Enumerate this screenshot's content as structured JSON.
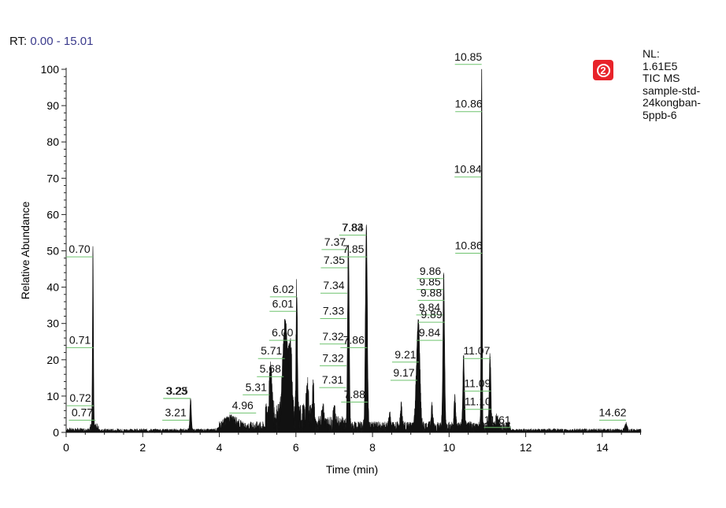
{
  "header": {
    "rt_prefix": "RT:",
    "rt_range": "0.00 - 15.01"
  },
  "badge": {
    "symbol": "2",
    "color": "#e8232a"
  },
  "info": {
    "lines": [
      "NL:",
      "1.61E5",
      "TIC  MS",
      "sample-std-",
      "24kongban-",
      "5ppb-6"
    ]
  },
  "chart_data": {
    "type": "line",
    "xlabel": "Time (min)",
    "ylabel": "Relative Abundance",
    "xlim": [
      0,
      15.01
    ],
    "ylim": [
      0,
      100
    ],
    "x_ticks": [
      "0",
      "2",
      "4",
      "6",
      "8",
      "10",
      "12",
      "14"
    ],
    "y_ticks": [
      "0",
      "10",
      "20",
      "30",
      "40",
      "50",
      "60",
      "70",
      "80",
      "90",
      "100"
    ],
    "peaks": [
      {
        "rt": 0.7,
        "abundance": 49
      },
      {
        "rt": 3.25,
        "abundance": 9
      },
      {
        "rt": 6.02,
        "abundance": 36
      },
      {
        "rt": 7.37,
        "abundance": 51
      },
      {
        "rt": 7.84,
        "abundance": 55
      },
      {
        "rt": 9.21,
        "abundance": 18
      },
      {
        "rt": 9.86,
        "abundance": 42
      },
      {
        "rt": 10.85,
        "abundance": 100
      },
      {
        "rt": 11.07,
        "abundance": 20
      },
      {
        "rt": 14.62,
        "abundance": 2
      }
    ],
    "annotations": [
      {
        "text": "0.70",
        "x": 0.7,
        "y": 49
      },
      {
        "text": "0.71",
        "x": 0.71,
        "y": 24
      },
      {
        "text": "0.72",
        "x": 0.72,
        "y": 8
      },
      {
        "text": "0.77",
        "x": 0.77,
        "y": 4
      },
      {
        "text": "3.23",
        "x": 3.23,
        "y": 10
      },
      {
        "text": "3.25",
        "x": 3.25,
        "y": 10
      },
      {
        "text": "3.21",
        "x": 3.21,
        "y": 4
      },
      {
        "text": "4.96",
        "x": 4.96,
        "y": 6
      },
      {
        "text": "5.31",
        "x": 5.31,
        "y": 11
      },
      {
        "text": "5.68",
        "x": 5.68,
        "y": 16
      },
      {
        "text": "5.71",
        "x": 5.71,
        "y": 21
      },
      {
        "text": "6.00",
        "x": 6.0,
        "y": 26
      },
      {
        "text": "6.01",
        "x": 6.01,
        "y": 34
      },
      {
        "text": "6.02",
        "x": 6.02,
        "y": 38
      },
      {
        "text": "7.37",
        "x": 7.37,
        "y": 51
      },
      {
        "text": "7.35",
        "x": 7.35,
        "y": 46
      },
      {
        "text": "7.34",
        "x": 7.34,
        "y": 39
      },
      {
        "text": "7.33",
        "x": 7.33,
        "y": 32
      },
      {
        "text": "7.32",
        "x": 7.32,
        "y": 25
      },
      {
        "text": "7.32",
        "x": 7.32,
        "y": 19
      },
      {
        "text": "7.31",
        "x": 7.31,
        "y": 13
      },
      {
        "text": "7.84",
        "x": 7.84,
        "y": 55
      },
      {
        "text": "7.83",
        "x": 7.83,
        "y": 55
      },
      {
        "text": "7.85",
        "x": 7.85,
        "y": 49
      },
      {
        "text": "7.86",
        "x": 7.86,
        "y": 24
      },
      {
        "text": "7.88",
        "x": 7.88,
        "y": 9
      },
      {
        "text": "9.17",
        "x": 9.17,
        "y": 15
      },
      {
        "text": "9.21",
        "x": 9.21,
        "y": 20
      },
      {
        "text": "9.85",
        "x": 9.85,
        "y": 40
      },
      {
        "text": "9.86",
        "x": 9.86,
        "y": 43
      },
      {
        "text": "9.84",
        "x": 9.84,
        "y": 33
      },
      {
        "text": "9.84",
        "x": 9.84,
        "y": 26
      },
      {
        "text": "9.88",
        "x": 9.88,
        "y": 37
      },
      {
        "text": "9.89",
        "x": 9.89,
        "y": 31
      },
      {
        "text": "10.85",
        "x": 10.85,
        "y": 102
      },
      {
        "text": "10.86",
        "x": 10.86,
        "y": 89
      },
      {
        "text": "10.84",
        "x": 10.84,
        "y": 71
      },
      {
        "text": "10.86",
        "x": 10.86,
        "y": 50
      },
      {
        "text": "11.07",
        "x": 11.07,
        "y": 21
      },
      {
        "text": "11.09",
        "x": 11.09,
        "y": 12
      },
      {
        "text": "11.10",
        "x": 11.1,
        "y": 7
      },
      {
        "text": "11.61",
        "x": 11.61,
        "y": 2
      },
      {
        "text": "14.62",
        "x": 14.62,
        "y": 4
      }
    ]
  }
}
